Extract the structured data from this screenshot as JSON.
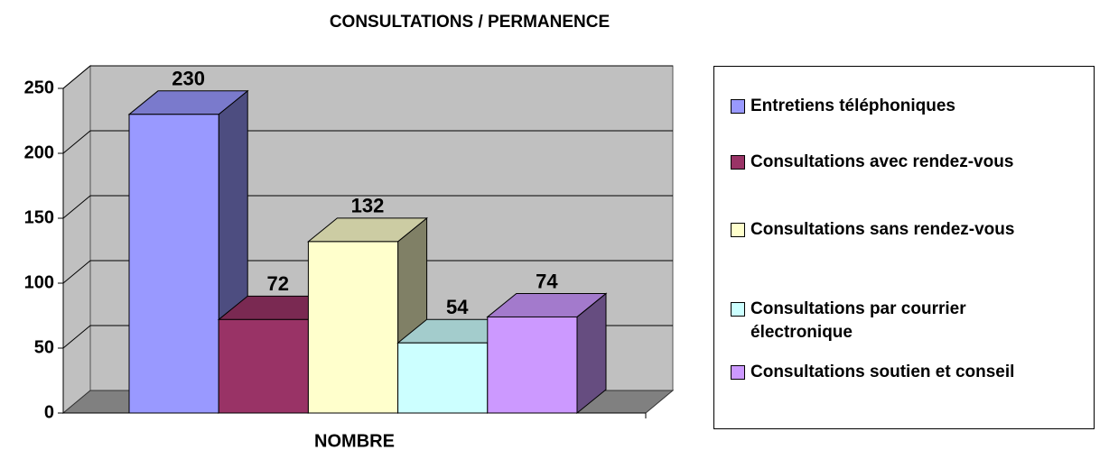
{
  "chart_data": {
    "type": "bar3d",
    "title": "CONSULTATIONS / PERMANENCE",
    "categories": [
      "NOMBRE"
    ],
    "series": [
      {
        "name": "Entretiens téléphoniques",
        "color": "#9999ff",
        "values": [
          230
        ]
      },
      {
        "name": "Consultations avec rendez-vous",
        "color": "#993366",
        "values": [
          72
        ]
      },
      {
        "name": "Consultations sans rendez-vous",
        "color": "#ffffcc",
        "values": [
          132
        ]
      },
      {
        "name": "Consultations par courrier électronique",
        "color": "#ccffff",
        "values": [
          54
        ]
      },
      {
        "name": "Consultations soutien et conseil",
        "color": "#cc99ff",
        "values": [
          74
        ]
      }
    ],
    "ylim": [
      0,
      250
    ],
    "yticks": [
      0,
      50,
      100,
      150,
      200,
      250
    ],
    "grid": true,
    "legend": "right"
  }
}
